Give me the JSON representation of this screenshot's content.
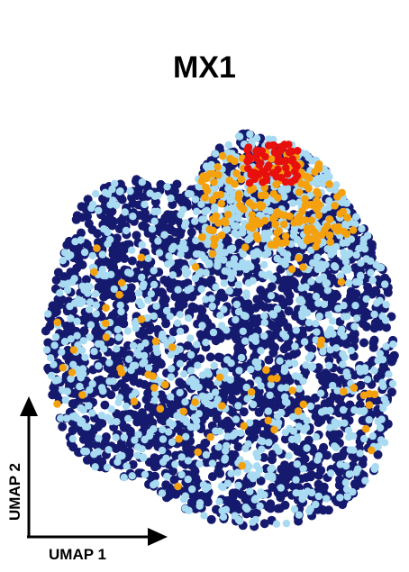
{
  "chart_data": {
    "type": "scatter",
    "title": "MX1",
    "xlabel": "UMAP 1",
    "ylabel": "UMAP 2",
    "grid": false,
    "legend": "none",
    "colors": {
      "low": "#151a6e",
      "mid_low": "#a8dbf2",
      "mid_high": "#f5a10e",
      "high": "#e8100c"
    },
    "expression_levels": [
      "low",
      "mid_low",
      "mid_high",
      "high"
    ],
    "cluster_regions": [
      {
        "level": "high",
        "x_range": [
          0.58,
          0.72
        ],
        "y_range": [
          0.86,
          0.96
        ],
        "approx_points": 60
      },
      {
        "level": "mid_high",
        "x_range": [
          0.45,
          0.88
        ],
        "y_range": [
          0.7,
          0.94
        ],
        "approx_points": 180
      },
      {
        "level": "mid_high",
        "x_range": [
          0.05,
          0.95
        ],
        "y_range": [
          0.1,
          0.7
        ],
        "approx_points": 60
      }
    ]
  }
}
